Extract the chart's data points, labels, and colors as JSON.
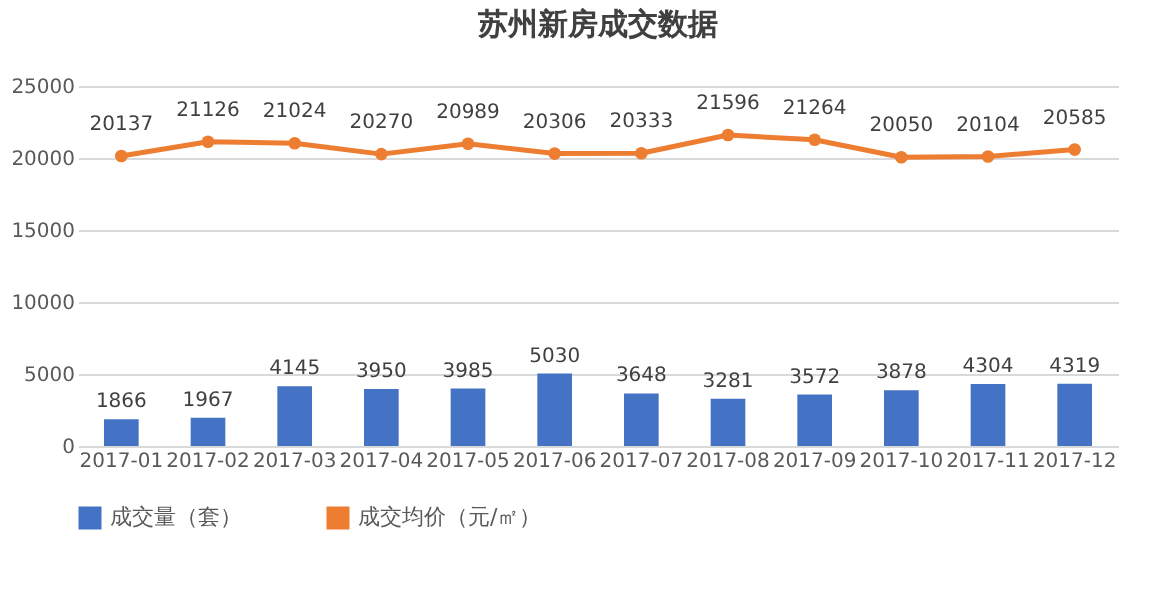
{
  "chart_data": {
    "type": "bar",
    "title": "苏州新房成交数据",
    "categories": [
      "2017-01",
      "2017-02",
      "2017-03",
      "2017-04",
      "2017-05",
      "2017-06",
      "2017-07",
      "2017-08",
      "2017-09",
      "2017-10",
      "2017-11",
      "2017-12"
    ],
    "series": [
      {
        "name": "成交量（套）",
        "color": "#4472c4",
        "values": [
          1866,
          1967,
          4145,
          3950,
          3985,
          5030,
          3648,
          3281,
          3572,
          3878,
          4304,
          4319
        ]
      },
      {
        "name": "成交均价（元/㎡）",
        "type": "line",
        "color": "#ed7d31",
        "values": [
          20137,
          21126,
          21024,
          20270,
          20989,
          20306,
          20333,
          21596,
          21264,
          20050,
          20104,
          20585
        ]
      }
    ],
    "ylim": [
      0,
      25000
    ],
    "yticks": [
      0,
      5000,
      10000,
      15000,
      20000,
      25000
    ],
    "grid": "y",
    "legend": "bottom",
    "marker": "circle",
    "line_style": "solid",
    "data_labels": true
  }
}
